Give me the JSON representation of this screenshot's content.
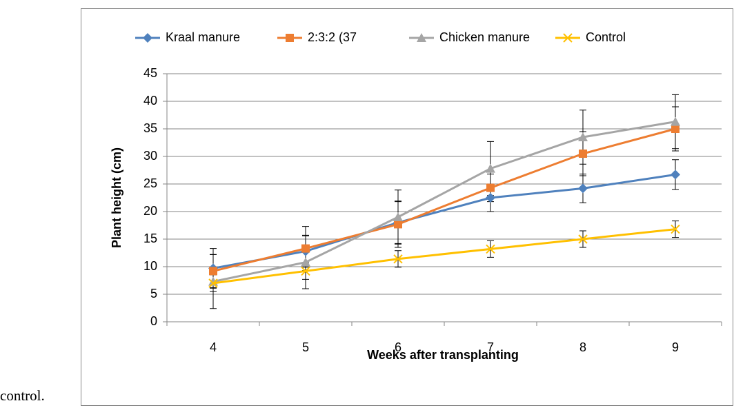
{
  "text": "control.",
  "chart_data": {
    "type": "line",
    "x_label": "Weeks after transplanting",
    "y_label": "Plant height (cm)",
    "categories": [
      "4",
      "5",
      "6",
      "7",
      "8",
      "9"
    ],
    "ylim": [
      0,
      45
    ],
    "yticks": [
      0,
      5,
      10,
      15,
      20,
      25,
      30,
      35,
      40,
      45
    ],
    "grid": true,
    "legend": "top",
    "series": [
      {
        "name": "Kraal manure",
        "color": "#4f81bd",
        "marker": "diamond",
        "values": [
          9.7,
          12.8,
          18,
          22.5,
          24.2,
          26.7
        ],
        "errors": [
          3.6,
          2.9,
          3.8,
          2.5,
          2.6,
          2.7
        ]
      },
      {
        "name": "2:3:2 (37",
        "color": "#ed7d31",
        "marker": "square",
        "values": [
          9.2,
          13.3,
          17.7,
          24.3,
          30.5,
          35
        ],
        "errors": [
          3,
          4,
          4.2,
          2.5,
          4,
          4
        ]
      },
      {
        "name": "Chicken manure",
        "color": "#a5a5a5",
        "marker": "triangle",
        "values": [
          7.3,
          10.8,
          19,
          27.8,
          33.5,
          36.3
        ],
        "errors": [
          4.9,
          4.8,
          4.9,
          4.9,
          4.9,
          4.9
        ]
      },
      {
        "name": "Control",
        "color": "#ffc000",
        "marker": "x",
        "values": [
          7,
          9.2,
          11.4,
          13.2,
          15,
          16.8
        ],
        "errors": [
          1.5,
          1.5,
          1.5,
          1.5,
          1.5,
          1.5
        ]
      }
    ]
  }
}
